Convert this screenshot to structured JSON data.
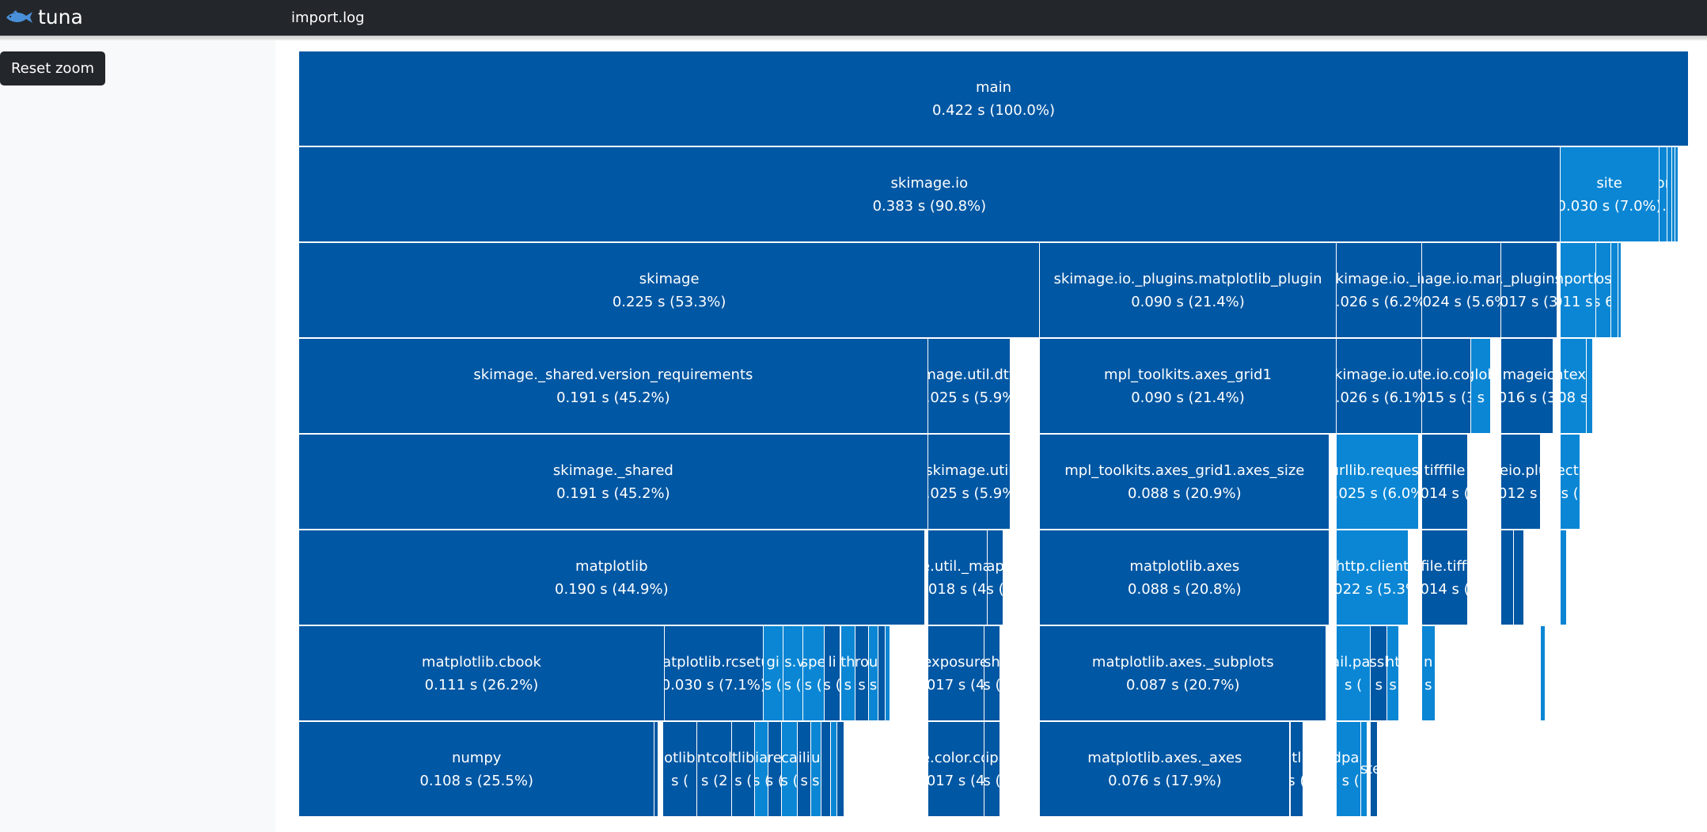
{
  "app": {
    "brand": "tuna",
    "filename": "import.log",
    "logo_icon": "tuna-fish-icon"
  },
  "sidebar": {
    "reset_zoom_label": "Reset zoom"
  },
  "colors": {
    "navbar": "#23272b",
    "block_dark": "#0057a3",
    "block_light": "#0a86d4"
  },
  "icicle": {
    "rows": [
      [
        {
          "name": "main",
          "value": "0.422 s (100.0%)",
          "start": 0,
          "seconds": 0.422,
          "color": "dark"
        }
      ],
      [
        {
          "name": "skimage.io",
          "value": "0.383 s (90.8%)",
          "start": 0,
          "seconds": 0.383,
          "color": "dark"
        },
        {
          "name": "site",
          "value": "0.030 s (7.0%)",
          "start": 0.383,
          "seconds": 0.03,
          "color": "light"
        },
        {
          "name": "pom",
          "value": "s ...",
          "start": 0.413,
          "seconds": 0.0025,
          "color": "light"
        },
        {
          "name": "",
          "value": "",
          "start": 0.4155,
          "seconds": 0.0015,
          "color": "light"
        },
        {
          "name": "",
          "value": "",
          "start": 0.417,
          "seconds": 0.001,
          "color": "light"
        },
        {
          "name": "",
          "value": "",
          "start": 0.418,
          "seconds": 0.0008,
          "color": "light"
        }
      ],
      [
        {
          "name": "skimage",
          "value": "0.225 s (53.3%)",
          "start": 0,
          "seconds": 0.225,
          "color": "dark"
        },
        {
          "name": "skimage.io._plugins.matplotlib_plugin",
          "value": "0.090 s (21.4%)",
          "start": 0.225,
          "seconds": 0.09,
          "color": "dark"
        },
        {
          "name": "skimage.io._io",
          "value": "0.026 s (6.2%)",
          "start": 0.315,
          "seconds": 0.026,
          "color": "dark"
        },
        {
          "name": "skimage.io.manage",
          "value": "0.024 s (5.6%)",
          "start": 0.341,
          "seconds": 0.024,
          "color": "dark"
        },
        {
          "name": "io._plugins.i",
          "value": "0.017 s (3.9",
          "start": 0.365,
          "seconds": 0.017,
          "color": "dark"
        },
        {
          "name": "importlib",
          "value": "0.011 s (2.",
          "start": 0.383,
          "seconds": 0.011,
          "color": "light"
        },
        {
          "name": "os",
          "value": "s 6",
          "start": 0.394,
          "seconds": 0.0045,
          "color": "light"
        },
        {
          "name": "",
          "value": "",
          "start": 0.3985,
          "seconds": 0.002,
          "color": "light"
        },
        {
          "name": "",
          "value": "",
          "start": 0.4005,
          "seconds": 0.001,
          "color": "light"
        }
      ],
      [
        {
          "name": "skimage._shared.version_requirements",
          "value": "0.191 s (45.2%)",
          "start": 0,
          "seconds": 0.191,
          "color": "dark"
        },
        {
          "name": "skimage.util.dtype",
          "value": "0.025 s (5.9%)",
          "start": 0.191,
          "seconds": 0.025,
          "color": "dark"
        },
        {
          "name": "mpl_toolkits.axes_grid1",
          "value": "0.090 s (21.4%)",
          "start": 0.225,
          "seconds": 0.09,
          "color": "dark"
        },
        {
          "name": "skimage.io.util",
          "value": "0.026 s (6.1%)",
          "start": 0.315,
          "seconds": 0.026,
          "color": "dark"
        },
        {
          "name": "skimage.io.collection",
          "value": "0.015 s (3.5",
          "start": 0.341,
          "seconds": 0.015,
          "color": "dark"
        },
        {
          "name": "glob",
          "value": "s",
          "start": 0.356,
          "seconds": 0.006,
          "color": "light"
        },
        {
          "name": "imageio",
          "value": "0.016 s (3.8",
          "start": 0.365,
          "seconds": 0.016,
          "color": "dark"
        },
        {
          "name": "contextlib",
          "value": "0.008 s (2.",
          "start": 0.383,
          "seconds": 0.008,
          "color": "light"
        },
        {
          "name": "",
          "value": "",
          "start": 0.391,
          "seconds": 0.002,
          "color": "light"
        }
      ],
      [
        {
          "name": "skimage._shared",
          "value": "0.191 s (45.2%)",
          "start": 0,
          "seconds": 0.191,
          "color": "dark"
        },
        {
          "name": "skimage.util",
          "value": "0.025 s (5.9%)",
          "start": 0.191,
          "seconds": 0.025,
          "color": "dark"
        },
        {
          "name": "mpl_toolkits.axes_grid1.axes_size",
          "value": "0.088 s (20.9%)",
          "start": 0.225,
          "seconds": 0.088,
          "color": "dark"
        },
        {
          "name": "urllib.request",
          "value": "0.025 s (6.0%)",
          "start": 0.315,
          "seconds": 0.025,
          "color": "light"
        },
        {
          "name": "tifffile",
          "value": "0.014 s (3.",
          "start": 0.341,
          "seconds": 0.014,
          "color": "dark"
        },
        {
          "name": "imageio.plugins",
          "value": "0.012 s (2",
          "start": 0.365,
          "seconds": 0.012,
          "color": "dark"
        },
        {
          "name": "collections",
          "value": "s (",
          "start": 0.383,
          "seconds": 0.006,
          "color": "light"
        }
      ],
      [
        {
          "name": "matplotlib",
          "value": "0.190 s (44.9%)",
          "start": 0,
          "seconds": 0.19,
          "color": "dark"
        },
        {
          "name": "skimage.util._map_array",
          "value": "0.018 s (4.3",
          "start": 0.191,
          "seconds": 0.018,
          "color": "dark"
        },
        {
          "name": "ap",
          "value": "s (",
          "start": 0.209,
          "seconds": 0.005,
          "color": "dark"
        },
        {
          "name": "matplotlib.axes",
          "value": "0.088 s (20.8%)",
          "start": 0.225,
          "seconds": 0.088,
          "color": "dark"
        },
        {
          "name": "http.client",
          "value": "0.022 s (5.3%)",
          "start": 0.315,
          "seconds": 0.022,
          "color": "light"
        },
        {
          "name": "tifffile.tifffile",
          "value": "0.014 s (3.",
          "start": 0.341,
          "seconds": 0.014,
          "color": "dark"
        },
        {
          "name": "",
          "value": "",
          "start": 0.365,
          "seconds": 0.004,
          "color": "dark"
        },
        {
          "name": "",
          "value": "",
          "start": 0.369,
          "seconds": 0.003,
          "color": "dark"
        },
        {
          "name": "",
          "value": "",
          "start": 0.383,
          "seconds": 0.002,
          "color": "light"
        }
      ],
      [
        {
          "name": "matplotlib.cbook",
          "value": "0.111 s (26.2%)",
          "start": 0,
          "seconds": 0.111,
          "color": "dark"
        },
        {
          "name": "matplotlib.rcsetup",
          "value": "0.030 s (7.1%)",
          "start": 0.111,
          "seconds": 0.03,
          "color": "dark"
        },
        {
          "name": "gi",
          "value": "s (",
          "start": 0.141,
          "seconds": 0.006,
          "color": "light"
        },
        {
          "name": "ls.v",
          "value": "s (",
          "start": 0.147,
          "seconds": 0.006,
          "color": "light"
        },
        {
          "name": "spe",
          "value": "s (",
          "start": 0.153,
          "seconds": 0.0065,
          "color": "light"
        },
        {
          "name": "li",
          "value": "s (",
          "start": 0.1595,
          "seconds": 0.005,
          "color": "dark"
        },
        {
          "name": "th",
          "value": "s",
          "start": 0.1645,
          "seconds": 0.0045,
          "color": "light"
        },
        {
          "name": "ro",
          "value": "s",
          "start": 0.169,
          "seconds": 0.004,
          "color": "dark"
        },
        {
          "name": "u",
          "value": "s",
          "start": 0.173,
          "seconds": 0.003,
          "color": "light"
        },
        {
          "name": "",
          "value": "",
          "start": 0.176,
          "seconds": 0.002,
          "color": "dark"
        },
        {
          "name": "",
          "value": "",
          "start": 0.178,
          "seconds": 0.0015,
          "color": "light"
        },
        {
          "name": "exposure",
          "value": "0.017 s (4.1",
          "start": 0.191,
          "seconds": 0.017,
          "color": "dark"
        },
        {
          "name": "sh",
          "value": "s (",
          "start": 0.208,
          "seconds": 0.005,
          "color": "dark"
        },
        {
          "name": "matplotlib.axes._subplots",
          "value": "0.087 s (20.7%)",
          "start": 0.225,
          "seconds": 0.087,
          "color": "dark"
        },
        {
          "name": "email.parser",
          "value": "s (",
          "start": 0.315,
          "seconds": 0.0105,
          "color": "light"
        },
        {
          "name": "ssl",
          "value": "s",
          "start": 0.3255,
          "seconds": 0.005,
          "color": "dark"
        },
        {
          "name": "ht",
          "value": "s",
          "start": 0.3305,
          "seconds": 0.0035,
          "color": "light"
        },
        {
          "name": "n",
          "value": "s",
          "start": 0.341,
          "seconds": 0.004,
          "color": "light"
        },
        {
          "name": "",
          "value": "",
          "start": 0.377,
          "seconds": 0.0015,
          "color": "light"
        }
      ],
      [
        {
          "name": "numpy",
          "value": "0.108 s (25.5%)",
          "start": 0,
          "seconds": 0.108,
          "color": "dark"
        },
        {
          "name": "",
          "value": "",
          "start": 0.108,
          "seconds": 0.001,
          "color": "dark"
        },
        {
          "name": "matplotlib.artist",
          "value": "s (",
          "start": 0.1105,
          "seconds": 0.0105,
          "color": "dark"
        },
        {
          "name": "ntcol",
          "value": "s (2",
          "start": 0.121,
          "seconds": 0.0105,
          "color": "dark"
        },
        {
          "name": "tlib",
          "value": "s (",
          "start": 0.1315,
          "seconds": 0.007,
          "color": "dark"
        },
        {
          "name": "ia",
          "value": "s (",
          "start": 0.1385,
          "seconds": 0.004,
          "color": "light"
        },
        {
          "name": "re",
          "value": "s (",
          "start": 0.1425,
          "seconds": 0.004,
          "color": "dark"
        },
        {
          "name": "ca",
          "value": "s (",
          "start": 0.1465,
          "seconds": 0.005,
          "color": "light"
        },
        {
          "name": "ili",
          "value": "s",
          "start": 0.1515,
          "seconds": 0.004,
          "color": "dark"
        },
        {
          "name": "u",
          "value": "s",
          "start": 0.1555,
          "seconds": 0.003,
          "color": "light"
        },
        {
          "name": "",
          "value": "",
          "start": 0.1585,
          "seconds": 0.003,
          "color": "dark"
        },
        {
          "name": "",
          "value": "",
          "start": 0.1615,
          "seconds": 0.002,
          "color": "light"
        },
        {
          "name": "",
          "value": "",
          "start": 0.1635,
          "seconds": 0.002,
          "color": "dark"
        },
        {
          "name": "skimage.color.colorconv",
          "value": "0.017 s (4.1",
          "start": 0.191,
          "seconds": 0.017,
          "color": "dark"
        },
        {
          "name": "ip",
          "value": "s (",
          "start": 0.208,
          "seconds": 0.005,
          "color": "dark"
        },
        {
          "name": "matplotlib.axes._axes",
          "value": "0.076 s (17.9%)",
          "start": 0.225,
          "seconds": 0.076,
          "color": "dark"
        },
        {
          "name": "tl",
          "value": "s (",
          "start": 0.301,
          "seconds": 0.004,
          "color": "dark"
        },
        {
          "name": "feedparser",
          "value": "0 s (2",
          "start": 0.315,
          "seconds": 0.0075,
          "color": "light"
        },
        {
          "name": "s",
          "value": "",
          "start": 0.3225,
          "seconds": 0.002,
          "color": "light"
        },
        {
          "name": "te",
          "value": "",
          "start": 0.3255,
          "seconds": 0.002,
          "color": "dark"
        }
      ]
    ]
  }
}
